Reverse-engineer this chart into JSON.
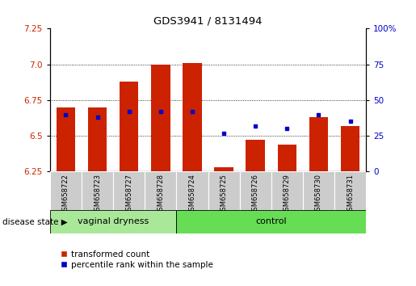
{
  "title": "GDS3941 / 8131494",
  "samples": [
    "GSM658722",
    "GSM658723",
    "GSM658727",
    "GSM658728",
    "GSM658724",
    "GSM658725",
    "GSM658726",
    "GSM658729",
    "GSM658730",
    "GSM658731"
  ],
  "red_values": [
    6.7,
    6.7,
    6.88,
    7.0,
    7.01,
    6.28,
    6.47,
    6.44,
    6.63,
    6.57
  ],
  "blue_pct": [
    40,
    38,
    42,
    42,
    42,
    27,
    32,
    30,
    40,
    35
  ],
  "ylim_left": [
    6.25,
    7.25
  ],
  "ylim_right": [
    0,
    100
  ],
  "yticks_left": [
    6.25,
    6.5,
    6.75,
    7.0,
    7.25
  ],
  "yticks_right": [
    0,
    25,
    50,
    75,
    100
  ],
  "grid_lines": [
    6.5,
    6.75,
    7.0
  ],
  "group1_label": "vaginal dryness",
  "group2_label": "control",
  "group1_count": 4,
  "group2_count": 6,
  "legend1": "transformed count",
  "legend2": "percentile rank within the sample",
  "disease_state_label": "disease state",
  "bar_color": "#cc2200",
  "dot_color": "#0000cc",
  "group1_bg": "#aae899",
  "group2_bg": "#66dd55",
  "tick_label_bg": "#cccccc",
  "bar_bottom": 6.25,
  "bar_width": 0.6,
  "fig_width": 5.15,
  "fig_height": 3.54,
  "dpi": 100
}
